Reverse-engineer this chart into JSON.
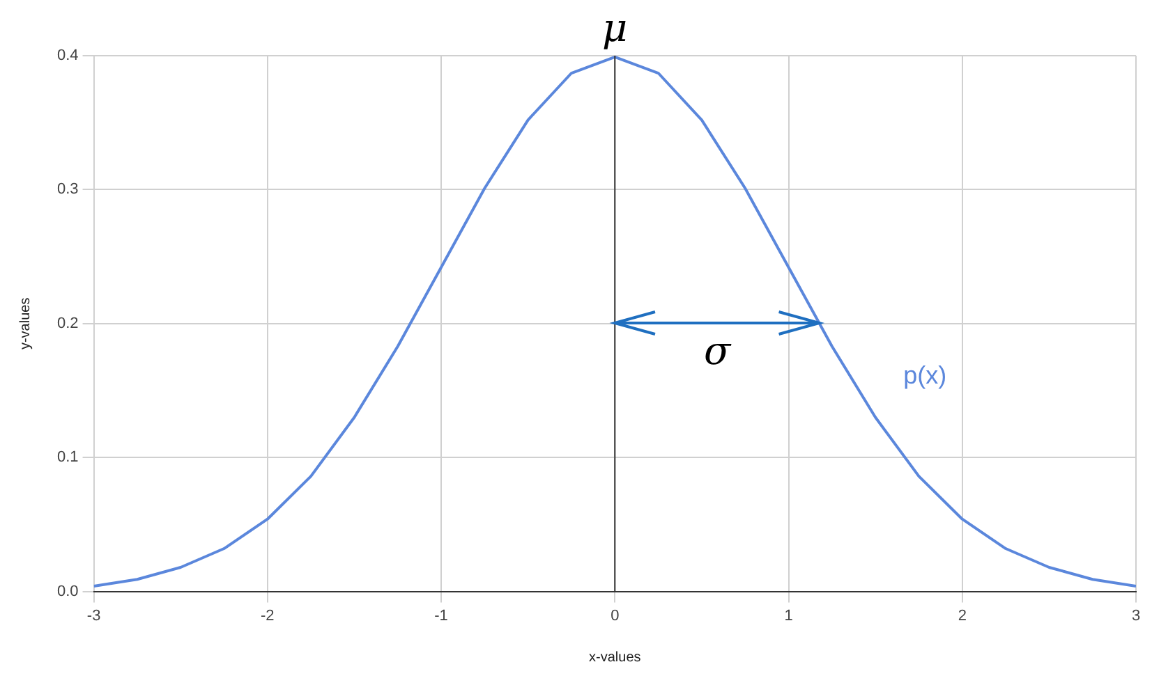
{
  "chart_data": {
    "type": "line",
    "xlabel": "x-values",
    "ylabel": "y-values",
    "xlim": [
      -3,
      3
    ],
    "xticks": [
      -3,
      -2,
      -1,
      0,
      1,
      2,
      3
    ],
    "ylim": [
      0,
      0.4
    ],
    "yticks": [
      {
        "value": 0,
        "label": "0.0"
      },
      0.1,
      0.2,
      0.3,
      0.4
    ],
    "grid": true,
    "legend": false,
    "marker": "none",
    "line_style": "solid",
    "x": [
      -3,
      -2.75,
      -2.5,
      -2.25,
      -2,
      -1.75,
      -1.5,
      -1.25,
      -1,
      -0.75,
      -0.5,
      -0.25,
      0,
      0.25,
      0.5,
      0.75,
      1,
      1.25,
      1.5,
      1.75,
      2,
      2.25,
      2.5,
      2.75,
      3
    ],
    "series": [
      {
        "name": "p(x)",
        "color": "#5b87dc",
        "values": [
          0.004,
          0.009,
          0.018,
          0.032,
          0.054,
          0.086,
          0.13,
          0.183,
          0.242,
          0.301,
          0.352,
          0.387,
          0.399,
          0.387,
          0.352,
          0.301,
          0.242,
          0.183,
          0.13,
          0.086,
          0.054,
          0.032,
          0.018,
          0.009,
          0.004
        ]
      }
    ],
    "ref_lines": [
      {
        "axis": "x",
        "value": 0,
        "label": "μ",
        "color": "#333333"
      }
    ],
    "annotations": [
      "σ"
    ]
  }
}
